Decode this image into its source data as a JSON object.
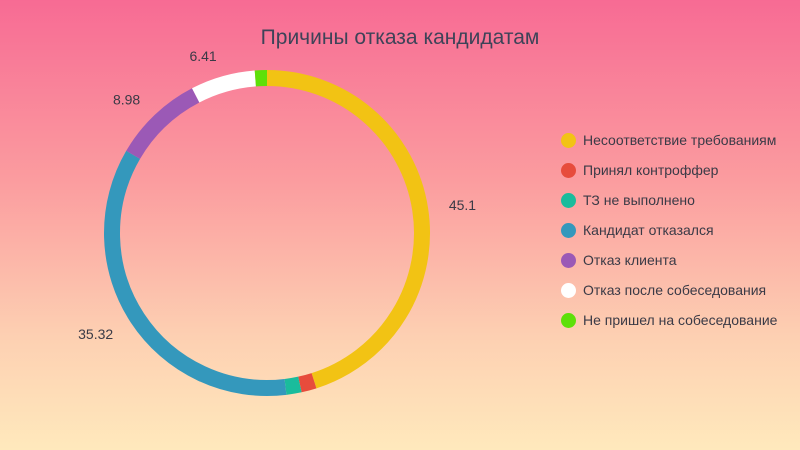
{
  "chart_data": {
    "type": "pie",
    "variant": "donut",
    "title": "Причины отказа кандидатам",
    "categories": [
      "Несоответствие требованиям",
      "Принял контроффер",
      "ТЗ не выполнено",
      "Кандидат отказался",
      "Отказ клиента",
      "Отказ после собеседования",
      "Не пришел на собеседование"
    ],
    "values": [
      45.1,
      1.5,
      1.5,
      35.32,
      8.98,
      6.41,
      1.2
    ],
    "colors": [
      "#f2c314",
      "#e74c3c",
      "#1abc9c",
      "#3498bc",
      "#9b59b6",
      "#ffffff",
      "#5ee009"
    ],
    "data_labels": [
      "45.1",
      "",
      "",
      "35.32",
      "8.98",
      "6.41",
      ""
    ],
    "legend_position": "right"
  }
}
